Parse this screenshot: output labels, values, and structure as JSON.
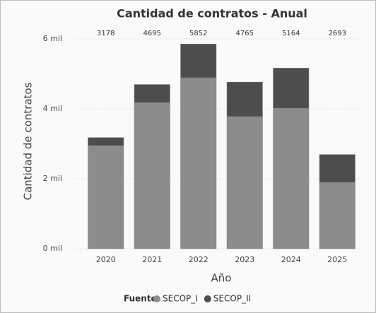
{
  "chart_data": {
    "type": "stacked_bar",
    "title": "Cantidad de contratos - Anual",
    "y_label": "Cantidad de contratos",
    "x_label": "Año",
    "legend_title": "Fuente",
    "categories": [
      "2020",
      "2021",
      "2022",
      "2023",
      "2024",
      "2025"
    ],
    "series": [
      {
        "name": "SECOP_I",
        "color": "#8c8c8c",
        "values": [
          2950,
          4180,
          4890,
          3780,
          4020,
          1900
        ]
      },
      {
        "name": "SECOP_II",
        "color": "#4d4d4d",
        "values": [
          228,
          515,
          962,
          985,
          1144,
          793
        ]
      }
    ],
    "totals": [
      3178,
      4695,
      5852,
      4765,
      5164,
      2693
    ],
    "ylim": [
      0,
      6000
    ],
    "yticks": [
      {
        "value": 0,
        "label": "0 mil"
      },
      {
        "value": 2000,
        "label": "2 mil"
      },
      {
        "value": 4000,
        "label": "4 mil"
      },
      {
        "value": 6000,
        "label": "6 mil"
      }
    ],
    "grid": true
  }
}
